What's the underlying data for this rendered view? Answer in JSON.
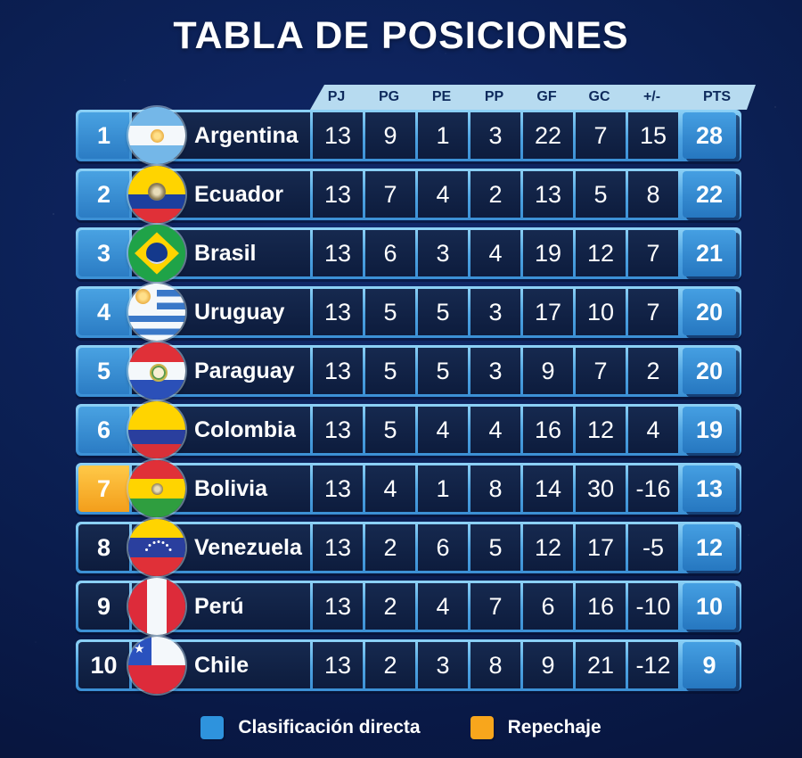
{
  "title": "TABLA DE POSICIONES",
  "chart_data": {
    "type": "table",
    "title": "TABLA DE POSICIONES",
    "columns": [
      "PJ",
      "PG",
      "PE",
      "PP",
      "GF",
      "GC",
      "+/-",
      "PTS"
    ],
    "rows": [
      {
        "pos": "1",
        "team": "Argentina",
        "flag": "argentina",
        "zone": "direct",
        "stats": [
          "13",
          "9",
          "1",
          "3",
          "22",
          "7",
          "15"
        ],
        "pts": "28"
      },
      {
        "pos": "2",
        "team": "Ecuador",
        "flag": "ecuador",
        "zone": "direct",
        "stats": [
          "13",
          "7",
          "4",
          "2",
          "13",
          "5",
          "8"
        ],
        "pts": "22"
      },
      {
        "pos": "3",
        "team": "Brasil",
        "flag": "brasil",
        "zone": "direct",
        "stats": [
          "13",
          "6",
          "3",
          "4",
          "19",
          "12",
          "7"
        ],
        "pts": "21"
      },
      {
        "pos": "4",
        "team": "Uruguay",
        "flag": "uruguay",
        "zone": "direct",
        "stats": [
          "13",
          "5",
          "5",
          "3",
          "17",
          "10",
          "7"
        ],
        "pts": "20"
      },
      {
        "pos": "5",
        "team": "Paraguay",
        "flag": "paraguay",
        "zone": "direct",
        "stats": [
          "13",
          "5",
          "5",
          "3",
          "9",
          "7",
          "2"
        ],
        "pts": "20"
      },
      {
        "pos": "6",
        "team": "Colombia",
        "flag": "colombia",
        "zone": "direct",
        "stats": [
          "13",
          "5",
          "4",
          "4",
          "16",
          "12",
          "4"
        ],
        "pts": "19"
      },
      {
        "pos": "7",
        "team": "Bolivia",
        "flag": "bolivia",
        "zone": "repechaje",
        "stats": [
          "13",
          "4",
          "1",
          "8",
          "14",
          "30",
          "-16"
        ],
        "pts": "13"
      },
      {
        "pos": "8",
        "team": "Venezuela",
        "flag": "venezuela",
        "zone": "none",
        "stats": [
          "13",
          "2",
          "6",
          "5",
          "12",
          "17",
          "-5"
        ],
        "pts": "12"
      },
      {
        "pos": "9",
        "team": "Perú",
        "flag": "peru",
        "zone": "none",
        "stats": [
          "13",
          "2",
          "4",
          "7",
          "6",
          "16",
          "-10"
        ],
        "pts": "10"
      },
      {
        "pos": "10",
        "team": "Chile",
        "flag": "chile",
        "zone": "none",
        "stats": [
          "13",
          "2",
          "3",
          "8",
          "9",
          "21",
          "-12"
        ],
        "pts": "9"
      }
    ]
  },
  "legend": [
    {
      "label": "Clasificación directa",
      "color": "#2e93dd"
    },
    {
      "label": "Repechaje",
      "color": "#f8a61c"
    }
  ],
  "colors": {
    "background": "#0b1f52",
    "direct_badge": "#2e93dd",
    "repechaje_badge": "#f8a61c",
    "header_band": "#b7dbf0",
    "cell_dark": "#0f2144",
    "row_frame": "#4fa5e2",
    "pts_cell": "#2e80c8"
  }
}
